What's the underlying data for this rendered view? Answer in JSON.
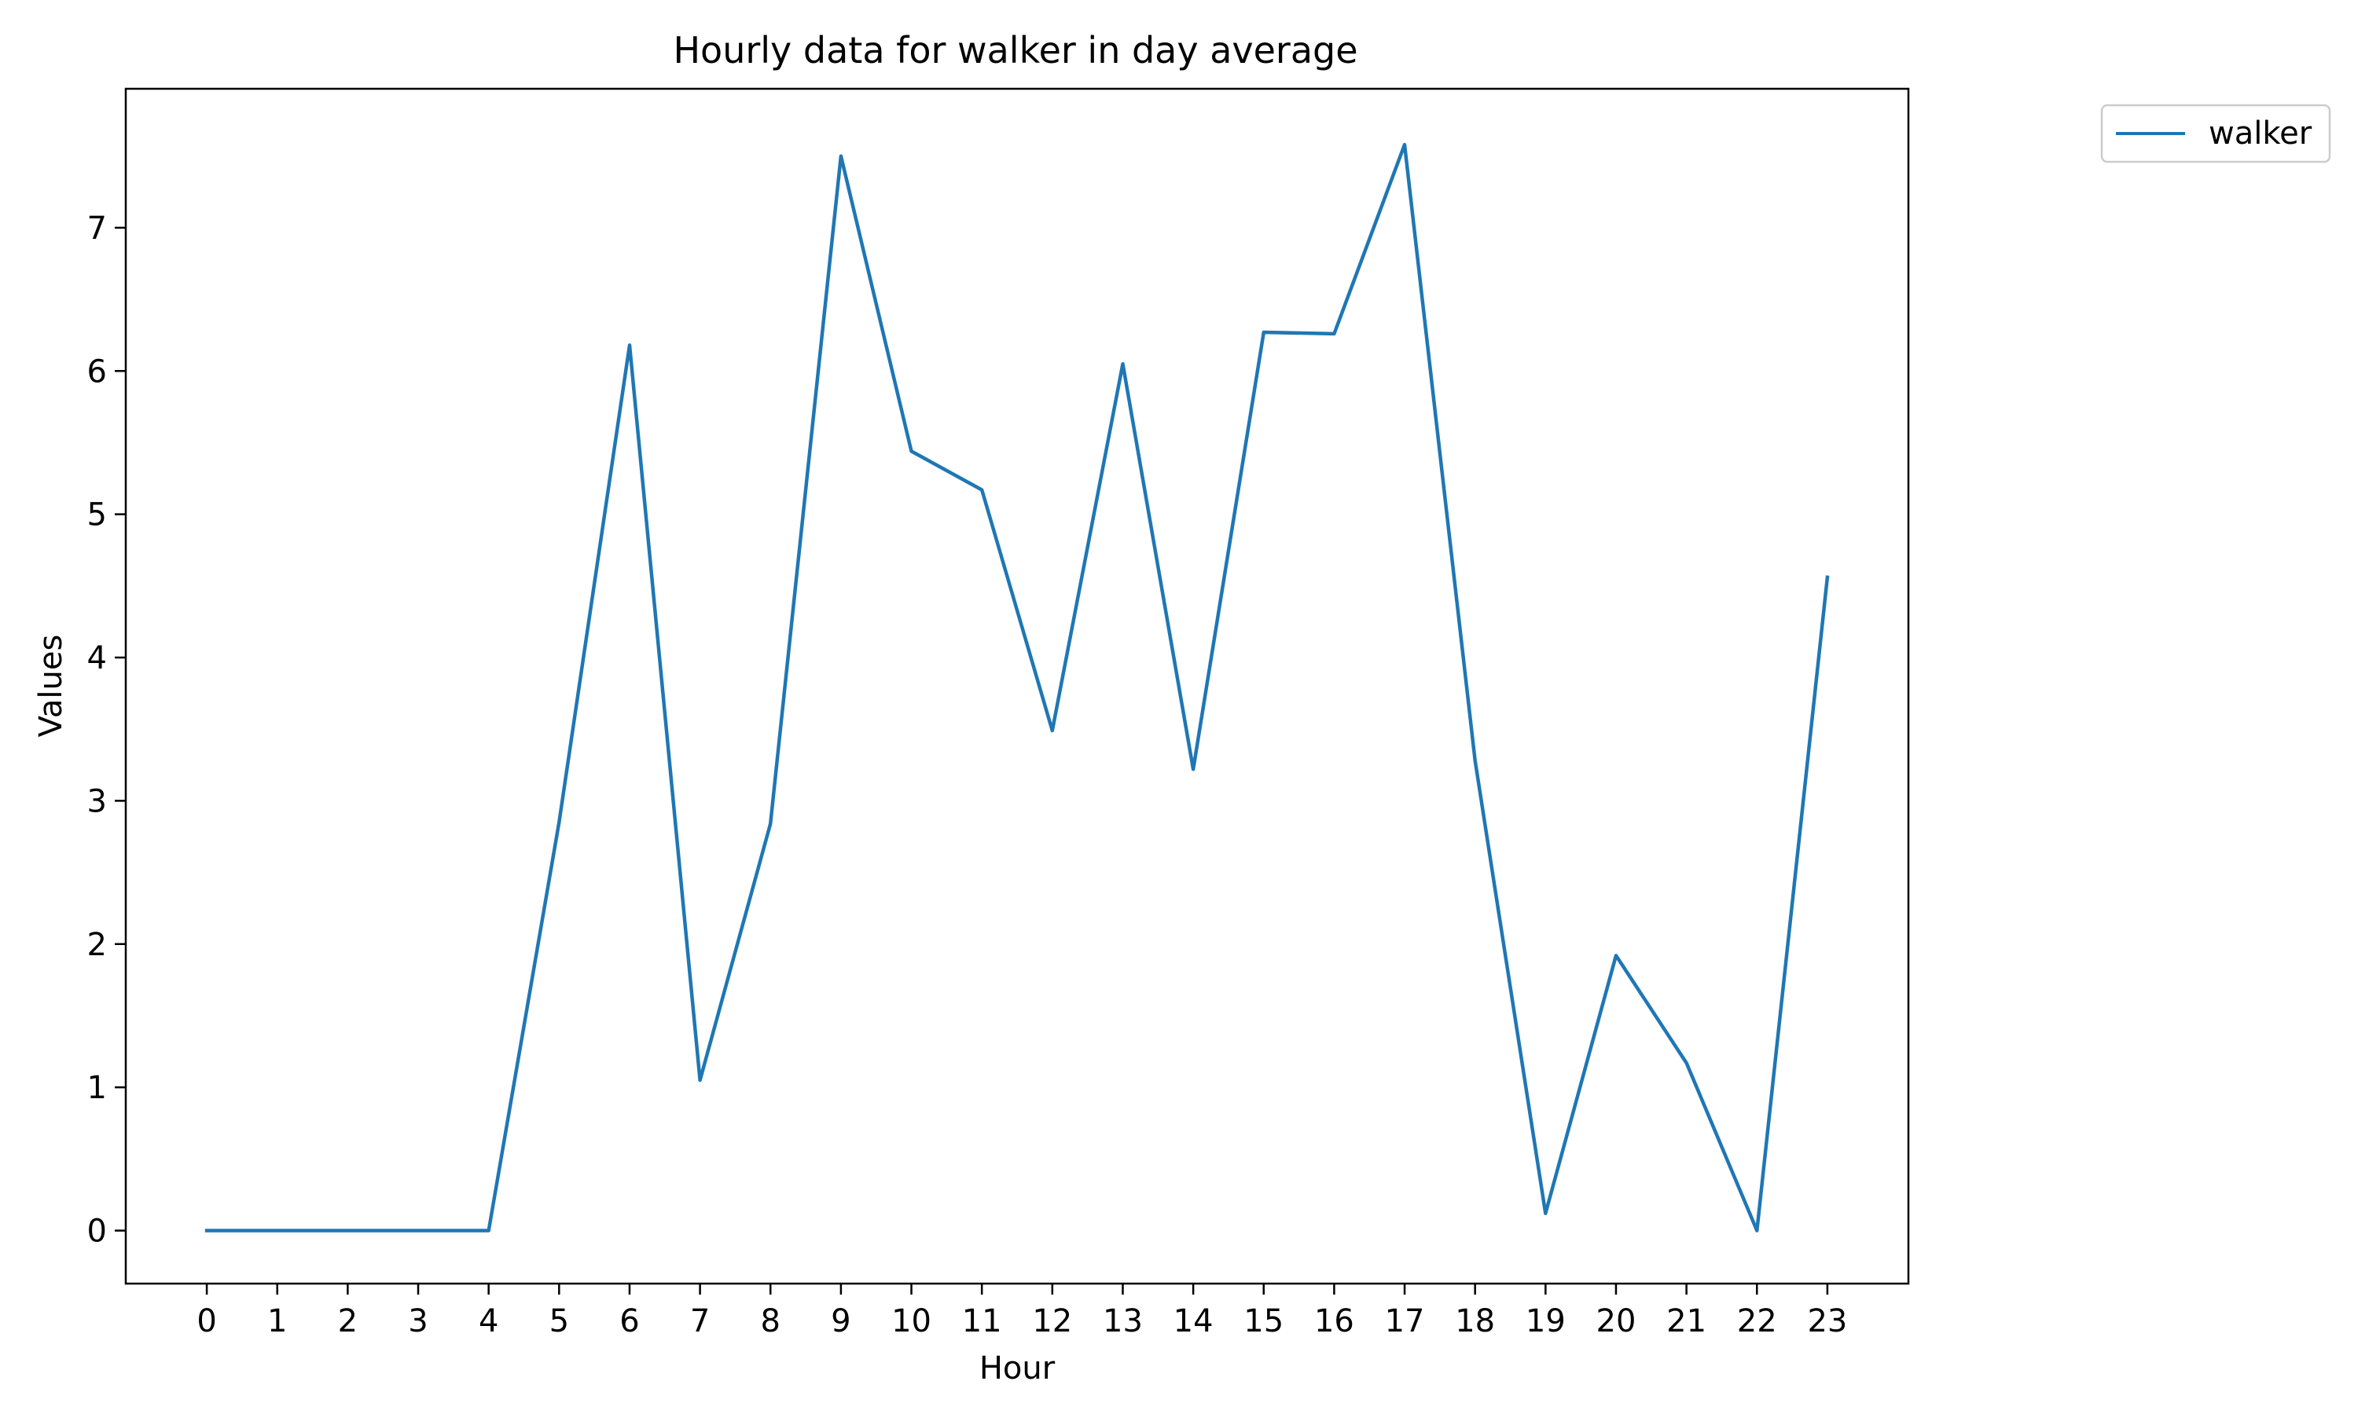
{
  "chart_data": {
    "type": "line",
    "title": "Hourly data for walker in day average",
    "xlabel": "Hour",
    "ylabel": "Values",
    "x": [
      0,
      1,
      2,
      3,
      4,
      5,
      6,
      7,
      8,
      9,
      10,
      11,
      12,
      13,
      14,
      15,
      16,
      17,
      18,
      19,
      20,
      21,
      22,
      23
    ],
    "x_ticks": [
      "0",
      "1",
      "2",
      "3",
      "4",
      "5",
      "6",
      "7",
      "8",
      "9",
      "10",
      "11",
      "12",
      "13",
      "14",
      "15",
      "16",
      "17",
      "18",
      "19",
      "20",
      "21",
      "22",
      "23"
    ],
    "y_ticks": [
      "0",
      "1",
      "2",
      "3",
      "4",
      "5",
      "6",
      "7"
    ],
    "xlim": [
      -1.15,
      24.15
    ],
    "ylim": [
      -0.37,
      7.97
    ],
    "grid": false,
    "legend_position": "upper right, outside plot",
    "series": [
      {
        "name": "walker",
        "color": "#1f77b4",
        "values": [
          0,
          0,
          0,
          0,
          0,
          2.85,
          6.18,
          1.05,
          2.84,
          7.5,
          5.44,
          5.17,
          3.49,
          6.05,
          3.22,
          6.27,
          6.26,
          7.58,
          3.28,
          0.12,
          1.92,
          1.17,
          0.0,
          4.56
        ]
      }
    ]
  }
}
